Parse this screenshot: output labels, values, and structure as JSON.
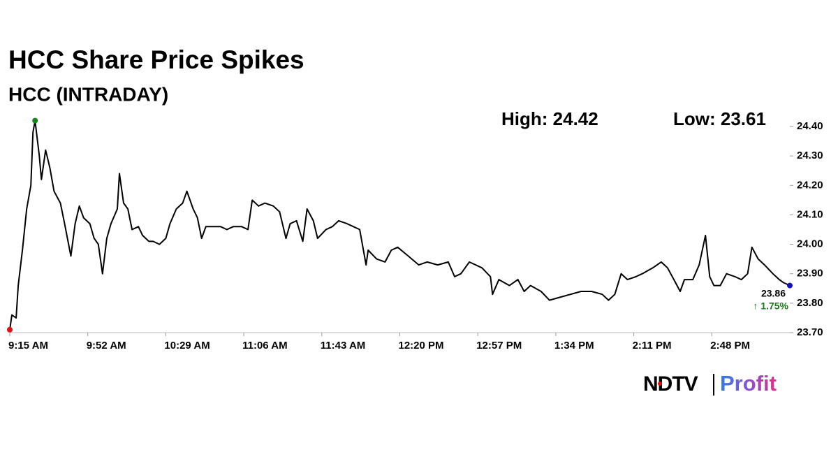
{
  "chart_data": {
    "type": "line",
    "title": "HCC Share Price Spikes",
    "subtitle": "HCC (INTRADAY)",
    "high_label": "High: 24.42",
    "low_label": "Low: 23.61",
    "last_label": "23.86",
    "change_label": "↑ 1.75%",
    "brand": {
      "name": "NDTV",
      "product": "Profit"
    },
    "x": [
      555,
      556,
      558,
      559,
      561,
      563,
      565,
      566,
      567,
      569,
      570,
      572,
      574,
      576,
      579,
      581,
      584,
      586,
      588,
      590,
      593,
      595,
      597,
      599,
      601,
      603,
      606,
      607,
      609,
      611,
      613,
      616,
      618,
      621,
      623,
      626,
      629,
      631,
      634,
      637,
      639,
      642,
      644,
      646,
      648,
      651,
      655,
      658,
      661,
      665,
      668,
      670,
      673,
      676,
      680,
      683,
      686,
      688,
      691,
      694,
      696,
      699,
      701,
      705,
      708,
      711,
      715,
      718,
      721,
      724,
      725,
      729,
      733,
      736,
      739,
      744,
      749,
      753,
      758,
      763,
      766,
      769,
      773,
      776,
      779,
      783,
      784,
      787,
      792,
      796,
      799,
      802,
      807,
      811,
      816,
      821,
      826,
      831,
      836,
      839,
      842,
      845,
      848,
      852,
      855,
      860,
      864,
      867,
      870,
      873,
      875,
      879,
      882,
      885,
      887,
      889,
      892,
      895,
      899,
      902,
      905,
      907,
      910,
      913,
      917,
      920,
      922,
      925
    ],
    "series": [
      {
        "name": "HCC",
        "color": "#000000",
        "values": [
          23.71,
          23.76,
          23.75,
          23.86,
          23.98,
          24.12,
          24.2,
          24.38,
          24.42,
          24.3,
          24.22,
          24.32,
          24.26,
          24.18,
          24.14,
          24.07,
          23.96,
          24.07,
          24.13,
          24.09,
          24.07,
          24.02,
          24.0,
          23.9,
          24.02,
          24.07,
          24.12,
          24.24,
          24.14,
          24.12,
          24.05,
          24.06,
          24.03,
          24.01,
          24.01,
          24.0,
          24.02,
          24.07,
          24.12,
          24.14,
          24.18,
          24.12,
          24.09,
          24.02,
          24.06,
          24.06,
          24.06,
          24.05,
          24.06,
          24.06,
          24.05,
          24.15,
          24.13,
          24.14,
          24.13,
          24.11,
          24.02,
          24.07,
          24.08,
          24.01,
          24.12,
          24.08,
          24.02,
          24.05,
          24.06,
          24.08,
          24.07,
          24.06,
          24.05,
          23.93,
          23.98,
          23.95,
          23.94,
          23.98,
          23.99,
          23.96,
          23.93,
          23.94,
          23.93,
          23.94,
          23.89,
          23.9,
          23.94,
          23.93,
          23.92,
          23.89,
          23.83,
          23.88,
          23.86,
          23.88,
          23.84,
          23.86,
          23.84,
          23.81,
          23.82,
          23.83,
          23.84,
          23.84,
          23.83,
          23.81,
          23.83,
          23.9,
          23.88,
          23.89,
          23.9,
          23.92,
          23.94,
          23.92,
          23.88,
          23.84,
          23.88,
          23.88,
          23.93,
          24.03,
          23.89,
          23.86,
          23.86,
          23.9,
          23.89,
          23.88,
          23.9,
          23.99,
          23.95,
          23.93,
          23.9,
          23.88,
          23.87,
          23.86
        ]
      }
    ],
    "low_color": "#e01010",
    "high_color": "#138a13",
    "last_color": "#1010c8",
    "change_color": "#1a7a1a",
    "xlim": [
      555,
      925
    ],
    "xticks": [
      {
        "value": 555,
        "label": "9:15 AM"
      },
      {
        "value": 592,
        "label": "9:52 AM"
      },
      {
        "value": 629,
        "label": "10:29 AM"
      },
      {
        "value": 666,
        "label": "11:06 AM"
      },
      {
        "value": 703,
        "label": "11:43 AM"
      },
      {
        "value": 740,
        "label": "12:20 PM"
      },
      {
        "value": 777,
        "label": "12:57 PM"
      },
      {
        "value": 814,
        "label": "1:34 PM"
      },
      {
        "value": 851,
        "label": "2:11 PM"
      },
      {
        "value": 888,
        "label": "2:48 PM"
      }
    ],
    "ylim": [
      23.7,
      24.4
    ],
    "yticks": [
      {
        "value": 23.7,
        "label": "23.70"
      },
      {
        "value": 23.8,
        "label": "23.80"
      },
      {
        "value": 23.9,
        "label": "23.90"
      },
      {
        "value": 24.0,
        "label": "24.00"
      },
      {
        "value": 24.1,
        "label": "24.10"
      },
      {
        "value": 24.2,
        "label": "24.20"
      },
      {
        "value": 24.3,
        "label": "24.30"
      },
      {
        "value": 24.4,
        "label": "24.40"
      }
    ]
  }
}
